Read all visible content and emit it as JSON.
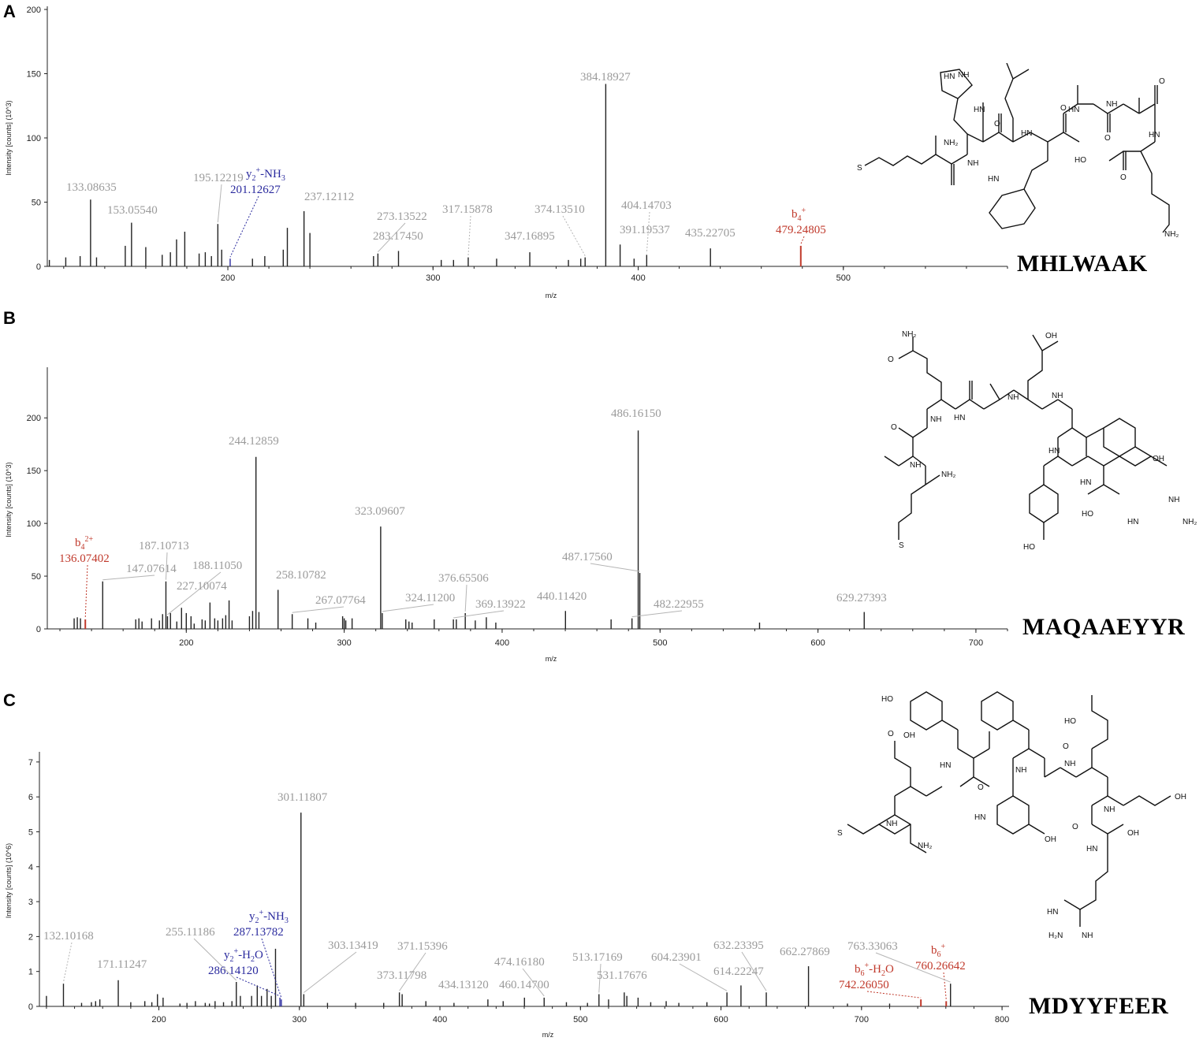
{
  "chart_data": [
    {
      "type": "bar",
      "panel": "A",
      "peptide": "MHLWAAK",
      "xlabel": "m/z",
      "ylabel": "Intensity [counts] (10^3)",
      "xlim": [
        112,
        580
      ],
      "ylim": [
        0,
        200
      ],
      "xticks": [
        200,
        300,
        400,
        500
      ],
      "yticks": [
        0,
        50,
        100,
        150,
        200
      ],
      "peaks": [
        [
          113,
          5
        ],
        [
          121,
          7
        ],
        [
          128,
          8
        ],
        [
          133.08635,
          52
        ],
        [
          136,
          7
        ],
        [
          150,
          16
        ],
        [
          153.0554,
          34
        ],
        [
          160,
          15
        ],
        [
          168,
          9
        ],
        [
          172,
          11
        ],
        [
          175,
          21
        ],
        [
          179,
          27
        ],
        [
          186,
          10
        ],
        [
          189,
          11
        ],
        [
          192,
          8
        ],
        [
          195.12219,
          33
        ],
        [
          197,
          13
        ],
        [
          201.12627,
          6
        ],
        [
          212,
          6
        ],
        [
          218,
          8
        ],
        [
          227,
          13
        ],
        [
          229,
          30
        ],
        [
          237.12112,
          43
        ],
        [
          240,
          26
        ],
        [
          271,
          8
        ],
        [
          273.13522,
          10
        ],
        [
          283.1745,
          12
        ],
        [
          304,
          5
        ],
        [
          310,
          5
        ],
        [
          317.15878,
          7
        ],
        [
          331,
          6
        ],
        [
          347.16895,
          11
        ],
        [
          366,
          5
        ],
        [
          372,
          6
        ],
        [
          374.1351,
          7
        ],
        [
          384.18927,
          142
        ],
        [
          391.19537,
          17
        ],
        [
          398,
          6
        ],
        [
          404.14703,
          9
        ],
        [
          435.22705,
          14
        ],
        [
          479.24805,
          16
        ]
      ],
      "labels": [
        {
          "x": 133.08635,
          "text": "133.08635",
          "color": "gray"
        },
        {
          "x": 153.0554,
          "text": "153.05540",
          "color": "gray"
        },
        {
          "x": 195.12219,
          "text": "195.12219",
          "color": "gray"
        },
        {
          "x": 201.12627,
          "text": "201.12627",
          "ion": "y2+-NH3",
          "color": "blue"
        },
        {
          "x": 237.12112,
          "text": "237.12112",
          "color": "gray"
        },
        {
          "x": 273.13522,
          "text": "273.13522",
          "color": "gray"
        },
        {
          "x": 283.1745,
          "text": "283.17450",
          "color": "gray"
        },
        {
          "x": 317.15878,
          "text": "317.15878",
          "color": "gray"
        },
        {
          "x": 347.16895,
          "text": "347.16895",
          "color": "gray"
        },
        {
          "x": 374.1351,
          "text": "374.13510",
          "color": "gray"
        },
        {
          "x": 384.18927,
          "text": "384.18927",
          "color": "gray"
        },
        {
          "x": 391.19537,
          "text": "391.19537",
          "color": "gray"
        },
        {
          "x": 404.14703,
          "text": "404.14703",
          "color": "gray"
        },
        {
          "x": 435.22705,
          "text": "435.22705",
          "color": "gray"
        },
        {
          "x": 479.24805,
          "text": "479.24805",
          "ion": "b4+",
          "color": "red"
        }
      ]
    },
    {
      "type": "bar",
      "panel": "B",
      "peptide": "MAQAAEYYR",
      "xlabel": "m/z",
      "ylabel": "Intensity [counts] (10^3)",
      "xlim": [
        112,
        720
      ],
      "ylim": [
        0,
        245
      ],
      "xticks": [
        200,
        300,
        400,
        500,
        600,
        700
      ],
      "yticks": [
        0,
        50,
        100,
        150,
        200
      ],
      "peaks": [
        [
          129,
          10
        ],
        [
          131,
          11
        ],
        [
          133,
          10
        ],
        [
          136.07402,
          9
        ],
        [
          147.07614,
          45
        ],
        [
          168,
          9
        ],
        [
          170,
          10
        ],
        [
          172,
          7
        ],
        [
          178,
          10
        ],
        [
          183,
          8
        ],
        [
          185,
          14
        ],
        [
          187.10713,
          45
        ],
        [
          188.1105,
          12
        ],
        [
          190,
          15
        ],
        [
          194,
          7
        ],
        [
          197,
          20
        ],
        [
          200,
          15
        ],
        [
          203,
          12
        ],
        [
          205,
          5
        ],
        [
          210,
          9
        ],
        [
          212,
          8
        ],
        [
          215,
          25
        ],
        [
          218,
          10
        ],
        [
          220,
          8
        ],
        [
          223,
          10
        ],
        [
          225,
          13
        ],
        [
          227.10074,
          27
        ],
        [
          229,
          8
        ],
        [
          240,
          12
        ],
        [
          242,
          17
        ],
        [
          244.12859,
          163
        ],
        [
          246,
          16
        ],
        [
          258.10782,
          37
        ],
        [
          267.07764,
          14
        ],
        [
          277,
          10
        ],
        [
          282,
          6
        ],
        [
          299,
          12
        ],
        [
          300,
          10
        ],
        [
          301,
          8
        ],
        [
          305,
          10
        ],
        [
          323.09607,
          97
        ],
        [
          324.112,
          15
        ],
        [
          339,
          9
        ],
        [
          341,
          7
        ],
        [
          343,
          6
        ],
        [
          357,
          9
        ],
        [
          369.13922,
          9
        ],
        [
          371,
          9
        ],
        [
          376.65506,
          15
        ],
        [
          383,
          8
        ],
        [
          390,
          11
        ],
        [
          396,
          6
        ],
        [
          440.1142,
          17
        ],
        [
          469,
          9
        ],
        [
          482.22955,
          10
        ],
        [
          486.1615,
          188
        ],
        [
          487.1756,
          53
        ],
        [
          563,
          6
        ],
        [
          629.27393,
          16
        ]
      ],
      "labels": [
        {
          "x": 136.07402,
          "text": "136.07402",
          "ion": "b4 2+",
          "color": "red"
        },
        {
          "x": 147.07614,
          "text": "147.07614",
          "color": "gray"
        },
        {
          "x": 187.10713,
          "text": "187.10713",
          "color": "gray"
        },
        {
          "x": 188.1105,
          "text": "188.11050",
          "color": "gray"
        },
        {
          "x": 227.10074,
          "text": "227.10074",
          "color": "gray"
        },
        {
          "x": 244.12859,
          "text": "244.12859",
          "color": "gray"
        },
        {
          "x": 258.10782,
          "text": "258.10782",
          "color": "gray"
        },
        {
          "x": 267.07764,
          "text": "267.07764",
          "color": "gray"
        },
        {
          "x": 323.09607,
          "text": "323.09607",
          "color": "gray"
        },
        {
          "x": 324.112,
          "text": "324.11200",
          "color": "gray"
        },
        {
          "x": 369.13922,
          "text": "369.13922",
          "color": "gray"
        },
        {
          "x": 376.65506,
          "text": "376.65506",
          "color": "gray"
        },
        {
          "x": 440.1142,
          "text": "440.11420",
          "color": "gray"
        },
        {
          "x": 482.22955,
          "text": "482.22955",
          "color": "gray"
        },
        {
          "x": 486.1615,
          "text": "486.16150",
          "color": "gray"
        },
        {
          "x": 487.1756,
          "text": "487.17560",
          "color": "gray"
        },
        {
          "x": 629.27393,
          "text": "629.27393",
          "color": "gray"
        }
      ]
    },
    {
      "type": "bar",
      "panel": "C",
      "peptide": "MDYYFEER",
      "xlabel": "m/z",
      "ylabel": "Intensity [counts] (10^6)",
      "xlim": [
        115,
        805
      ],
      "ylim": [
        0,
        7.2
      ],
      "xticks": [
        200,
        300,
        400,
        500,
        600,
        700,
        800
      ],
      "yticks": [
        0,
        1,
        2,
        3,
        4,
        5,
        6,
        7
      ],
      "peaks": [
        [
          120,
          0.3
        ],
        [
          132.10168,
          0.65
        ],
        [
          145,
          0.1
        ],
        [
          152,
          0.12
        ],
        [
          155,
          0.15
        ],
        [
          158,
          0.2
        ],
        [
          171.11247,
          0.75
        ],
        [
          180,
          0.12
        ],
        [
          190,
          0.15
        ],
        [
          195,
          0.12
        ],
        [
          199,
          0.35
        ],
        [
          203,
          0.25
        ],
        [
          215,
          0.08
        ],
        [
          220,
          0.1
        ],
        [
          226,
          0.15
        ],
        [
          233,
          0.1
        ],
        [
          236,
          0.08
        ],
        [
          240,
          0.15
        ],
        [
          246,
          0.12
        ],
        [
          252,
          0.15
        ],
        [
          255.11186,
          0.7
        ],
        [
          258,
          0.3
        ],
        [
          266,
          0.3
        ],
        [
          270,
          0.6
        ],
        [
          273,
          0.3
        ],
        [
          277,
          0.5
        ],
        [
          280,
          0.3
        ],
        [
          283,
          1.65
        ],
        [
          286.1412,
          0.25
        ],
        [
          287.13782,
          0.2
        ],
        [
          301.11807,
          5.55
        ],
        [
          303.13419,
          0.35
        ],
        [
          320,
          0.1
        ],
        [
          340,
          0.1
        ],
        [
          360,
          0.1
        ],
        [
          371.15396,
          0.4
        ],
        [
          373.11798,
          0.35
        ],
        [
          390,
          0.15
        ],
        [
          410,
          0.1
        ],
        [
          434.1312,
          0.2
        ],
        [
          445,
          0.15
        ],
        [
          460.147,
          0.25
        ],
        [
          474.1618,
          0.25
        ],
        [
          490,
          0.12
        ],
        [
          505,
          0.1
        ],
        [
          513.17169,
          0.35
        ],
        [
          520,
          0.2
        ],
        [
          531.17676,
          0.4
        ],
        [
          533,
          0.3
        ],
        [
          541,
          0.25
        ],
        [
          550,
          0.12
        ],
        [
          561,
          0.15
        ],
        [
          570,
          0.1
        ],
        [
          590,
          0.12
        ],
        [
          604.23901,
          0.4
        ],
        [
          614.22247,
          0.6
        ],
        [
          632.23395,
          0.4
        ],
        [
          662.27869,
          1.15
        ],
        [
          690,
          0.08
        ],
        [
          720,
          0.08
        ],
        [
          742.2605,
          0.2
        ],
        [
          760.26642,
          0.15
        ],
        [
          763.33063,
          0.65
        ]
      ],
      "labels": [
        {
          "x": 132.10168,
          "text": "132.10168",
          "color": "gray"
        },
        {
          "x": 171.11247,
          "text": "171.11247",
          "color": "gray"
        },
        {
          "x": 255.11186,
          "text": "255.11186",
          "color": "gray"
        },
        {
          "x": 286.1412,
          "text": "286.14120",
          "ion": "y2+-H2O",
          "color": "blue"
        },
        {
          "x": 287.13782,
          "text": "287.13782",
          "ion": "y2+-NH3",
          "color": "blue"
        },
        {
          "x": 301.11807,
          "text": "301.11807",
          "color": "gray"
        },
        {
          "x": 303.13419,
          "text": "303.13419",
          "color": "gray"
        },
        {
          "x": 371.15396,
          "text": "371.15396",
          "color": "gray"
        },
        {
          "x": 373.11798,
          "text": "373.11798",
          "color": "gray"
        },
        {
          "x": 434.1312,
          "text": "434.13120",
          "color": "gray"
        },
        {
          "x": 460.147,
          "text": "460.14700",
          "color": "gray"
        },
        {
          "x": 474.1618,
          "text": "474.16180",
          "color": "gray"
        },
        {
          "x": 513.17169,
          "text": "513.17169",
          "color": "gray"
        },
        {
          "x": 531.17676,
          "text": "531.17676",
          "color": "gray"
        },
        {
          "x": 604.23901,
          "text": "604.23901",
          "color": "gray"
        },
        {
          "x": 614.22247,
          "text": "614.22247",
          "color": "gray"
        },
        {
          "x": 632.23395,
          "text": "632.23395",
          "color": "gray"
        },
        {
          "x": 662.27869,
          "text": "662.27869",
          "color": "gray"
        },
        {
          "x": 742.2605,
          "text": "742.26050",
          "ion": "b6+-H2O",
          "color": "red"
        },
        {
          "x": 760.26642,
          "text": "760.26642",
          "ion": "b6+",
          "color": "red"
        },
        {
          "x": 763.33063,
          "text": "763.33063",
          "color": "gray"
        }
      ]
    }
  ],
  "panels": {
    "a": {
      "letter": "A",
      "peptide": "MHLWAAK"
    },
    "b": {
      "letter": "B",
      "peptide": "MAQAAEYYR"
    },
    "c": {
      "letter": "C",
      "peptide": "MDYYFEER"
    }
  },
  "colors": {
    "gray": "#9a9a9a",
    "red": "#c0392b",
    "blue": "#2a2a9e",
    "axis": "#222222"
  }
}
